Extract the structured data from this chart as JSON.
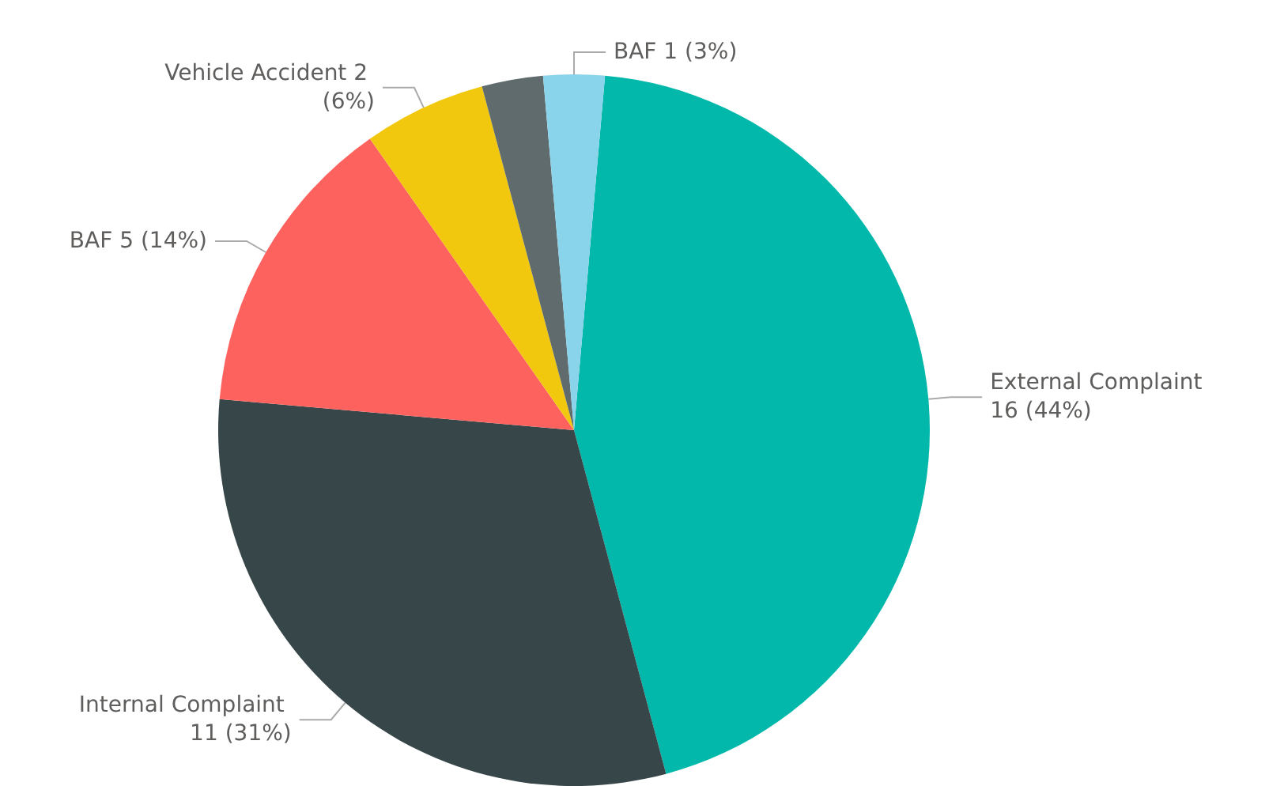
{
  "chart_data": {
    "type": "pie",
    "categories": [
      "External Complaint",
      "Internal Complaint",
      "BAF",
      "Vehicle Accident",
      null,
      "BAF"
    ],
    "values": [
      16,
      11,
      5,
      2,
      1,
      1
    ],
    "value_labels": [
      "16 (44%)",
      "11 (31%)",
      "5 (14%)",
      "2 (6%)",
      null,
      "1 (3%)"
    ],
    "colors": [
      "#01b8aa",
      "#374649",
      "#fd625e",
      "#f2c80f",
      "#5f6b6d",
      "#8ad4eb"
    ],
    "legend": false
  }
}
